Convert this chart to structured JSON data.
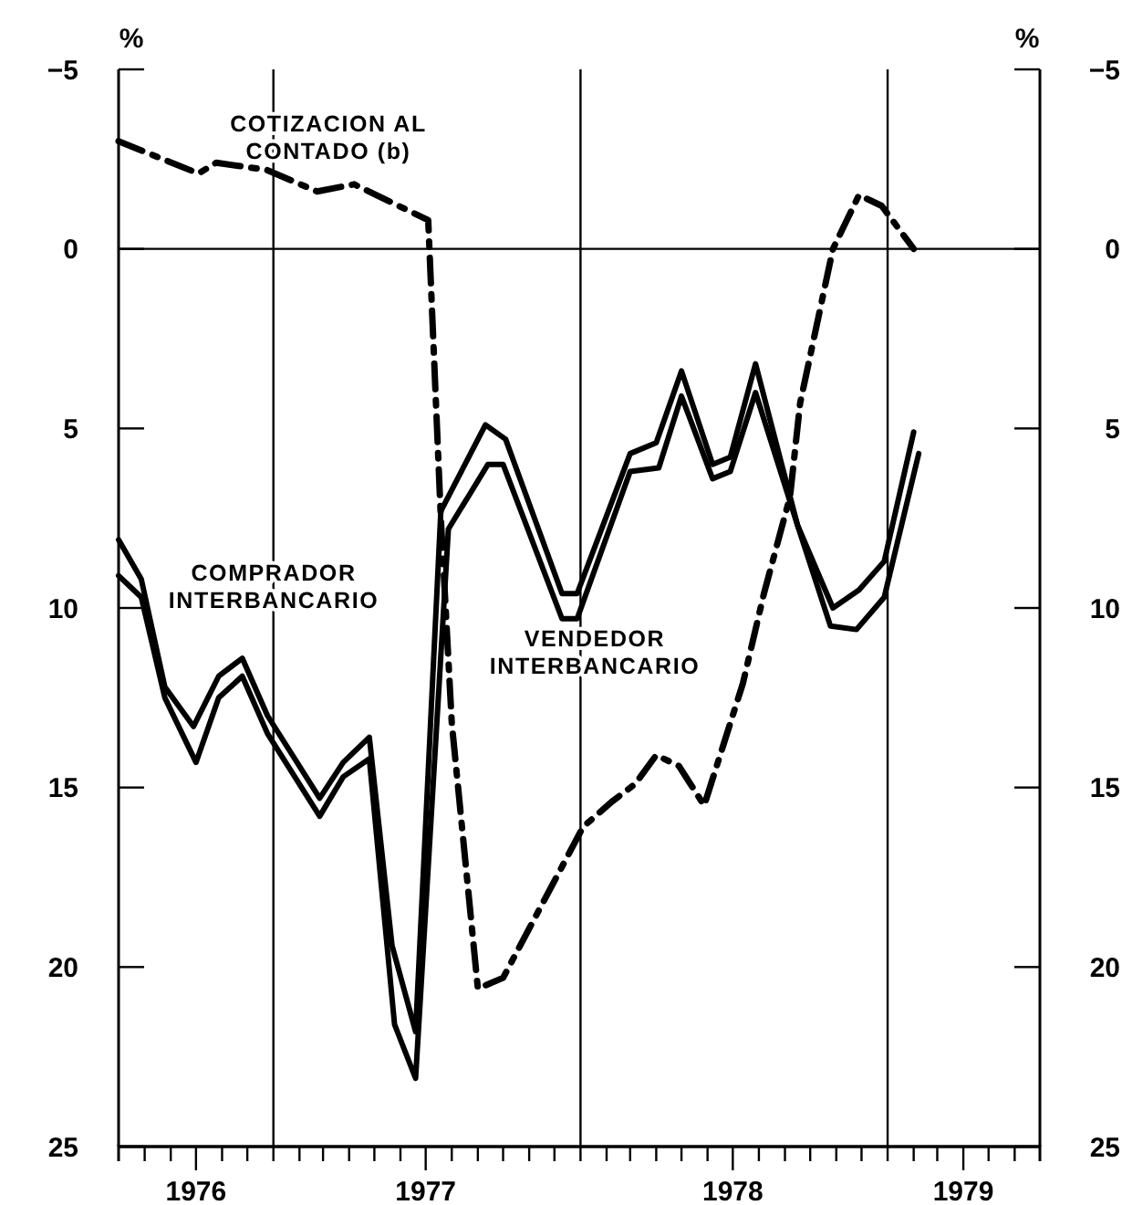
{
  "chart_data": {
    "type": "line",
    "ylabel": "%",
    "y2label": "%",
    "xlim": [
      "1976-07-01",
      "1979-07-01"
    ],
    "ylim": [
      25,
      -5
    ],
    "y2lim": [
      25,
      -5
    ],
    "xticks": [
      {
        "value": "1976-08",
        "label": null
      },
      {
        "value": "1976-09",
        "label": null
      },
      {
        "value": "1976-10",
        "label": "1976"
      },
      {
        "value": "1976-11",
        "label": null
      },
      {
        "value": "1976-12",
        "label": null
      },
      {
        "value": "1977-01",
        "label": null
      },
      {
        "value": "1977-02",
        "label": null
      },
      {
        "value": "1977-03",
        "label": null
      },
      {
        "value": "1977-04",
        "label": null
      },
      {
        "value": "1977-05",
        "label": null
      },
      {
        "value": "1977-06",
        "label": null
      },
      {
        "value": "1977-07",
        "label": "1977"
      },
      {
        "value": "1977-08",
        "label": null
      },
      {
        "value": "1977-09",
        "label": null
      },
      {
        "value": "1977-10",
        "label": null
      },
      {
        "value": "1977-11",
        "label": null
      },
      {
        "value": "1977-12",
        "label": null
      },
      {
        "value": "1978-01",
        "label": null
      },
      {
        "value": "1978-02",
        "label": null
      },
      {
        "value": "1978-03",
        "label": null
      },
      {
        "value": "1978-04",
        "label": null
      },
      {
        "value": "1978-05",
        "label": null
      },
      {
        "value": "1978-06",
        "label": null
      },
      {
        "value": "1978-07",
        "label": "1978"
      },
      {
        "value": "1978-08",
        "label": null
      },
      {
        "value": "1978-09",
        "label": null
      },
      {
        "value": "1978-10",
        "label": null
      },
      {
        "value": "1978-11",
        "label": null
      },
      {
        "value": "1978-12",
        "label": null
      },
      {
        "value": "1979-01",
        "label": null
      },
      {
        "value": "1979-02",
        "label": null
      },
      {
        "value": "1979-03",
        "label": null
      },
      {
        "value": "1979-04",
        "label": "1979"
      },
      {
        "value": "1979-05",
        "label": null
      },
      {
        "value": "1979-06",
        "label": null
      }
    ],
    "yticks": [
      -5,
      0,
      5,
      10,
      15,
      20,
      25
    ],
    "y2ticks": [
      -5,
      0,
      5,
      10,
      15,
      20,
      25
    ],
    "ref_lines": [
      {
        "axis": "y",
        "value": 0,
        "color": "#000000"
      },
      {
        "axis": "x",
        "value": "1977-01-01",
        "color": "#000000"
      },
      {
        "axis": "x",
        "value": "1978-01-01",
        "color": "#000000"
      },
      {
        "axis": "x",
        "value": "1979-01-01",
        "color": "#000000"
      }
    ],
    "series": [
      {
        "name": "COTIZACION AL CONTADO (b)",
        "color": "#000000",
        "line_style": "dashdot",
        "x": [
          "1976-07-01",
          "1976-10-04",
          "1976-10-25",
          "1976-12-24",
          "1977-02-22",
          "1977-04-07",
          "1977-07-04",
          "1977-07-19",
          "1977-08-01",
          "1977-09-01",
          "1977-10-01",
          "1978-01-04",
          "1978-02-07",
          "1978-03-07",
          "1978-04-01",
          "1978-04-28",
          "1978-05-28",
          "1978-07-13",
          "1978-08-07",
          "1978-09-07",
          "1978-09-19",
          "1978-10-28",
          "1978-11-28",
          "1978-12-25",
          "1979-02-01"
        ],
        "values": [
          -3.0,
          -2.1,
          -2.4,
          -2.2,
          -1.6,
          -1.8,
          -0.8,
          7.5,
          13.2,
          20.6,
          20.3,
          16.1,
          15.4,
          14.9,
          14.1,
          14.4,
          15.5,
          12.1,
          9.6,
          6.9,
          4.3,
          0,
          -1.5,
          -1.2,
          0
        ]
      },
      {
        "name": "COMPRADOR INTERBANCARIO",
        "color": "#000000",
        "line_style": "solid",
        "x": [
          "1976-07-01",
          "1976-07-28",
          "1976-08-25",
          "1976-09-28",
          "1976-10-28",
          "1976-11-25",
          "1976-12-25",
          "1977-02-25",
          "1977-03-25",
          "1977-04-25",
          "1977-05-22",
          "1977-06-19",
          "1977-07-19",
          "1977-09-10",
          "1977-10-04",
          "1977-12-10",
          "1977-12-28",
          "1978-03-01",
          "1978-04-01",
          "1978-05-01",
          "1978-06-07",
          "1978-06-28",
          "1978-07-28",
          "1978-09-16",
          "1978-10-28",
          "1978-11-28",
          "1978-12-28",
          "1979-02-01"
        ],
        "values": [
          8.1,
          9.2,
          12.2,
          13.3,
          11.9,
          11.4,
          13.0,
          15.3,
          14.3,
          13.6,
          19.4,
          21.8,
          7.3,
          4.9,
          5.3,
          9.6,
          9.6,
          5.7,
          5.4,
          3.4,
          6.0,
          5.8,
          3.2,
          7.7,
          10.0,
          9.5,
          8.7,
          5.1
        ]
      },
      {
        "name": "VENDEDOR INTERBANCARIO",
        "color": "#000000",
        "line_style": "solid",
        "x": [
          "1976-07-01",
          "1976-07-28",
          "1976-08-25",
          "1976-10-01",
          "1976-10-28",
          "1976-11-25",
          "1976-12-25",
          "1977-02-25",
          "1977-03-25",
          "1977-04-25",
          "1977-05-25",
          "1977-06-19",
          "1977-07-28",
          "1977-09-13",
          "1977-10-01",
          "1977-12-10",
          "1977-12-28",
          "1978-03-01",
          "1978-04-04",
          "1978-05-01",
          "1978-06-07",
          "1978-06-28",
          "1978-07-28",
          "1978-09-16",
          "1978-10-25",
          "1978-11-25",
          "1978-12-28",
          "1979-02-07"
        ],
        "values": [
          9.1,
          9.7,
          12.5,
          14.3,
          12.5,
          11.9,
          13.5,
          15.8,
          14.7,
          14.2,
          21.6,
          23.1,
          7.8,
          6.0,
          6.0,
          10.3,
          10.3,
          6.2,
          6.1,
          4.1,
          6.4,
          6.2,
          4.0,
          7.7,
          10.5,
          10.6,
          9.7,
          5.7
        ]
      }
    ]
  }
}
